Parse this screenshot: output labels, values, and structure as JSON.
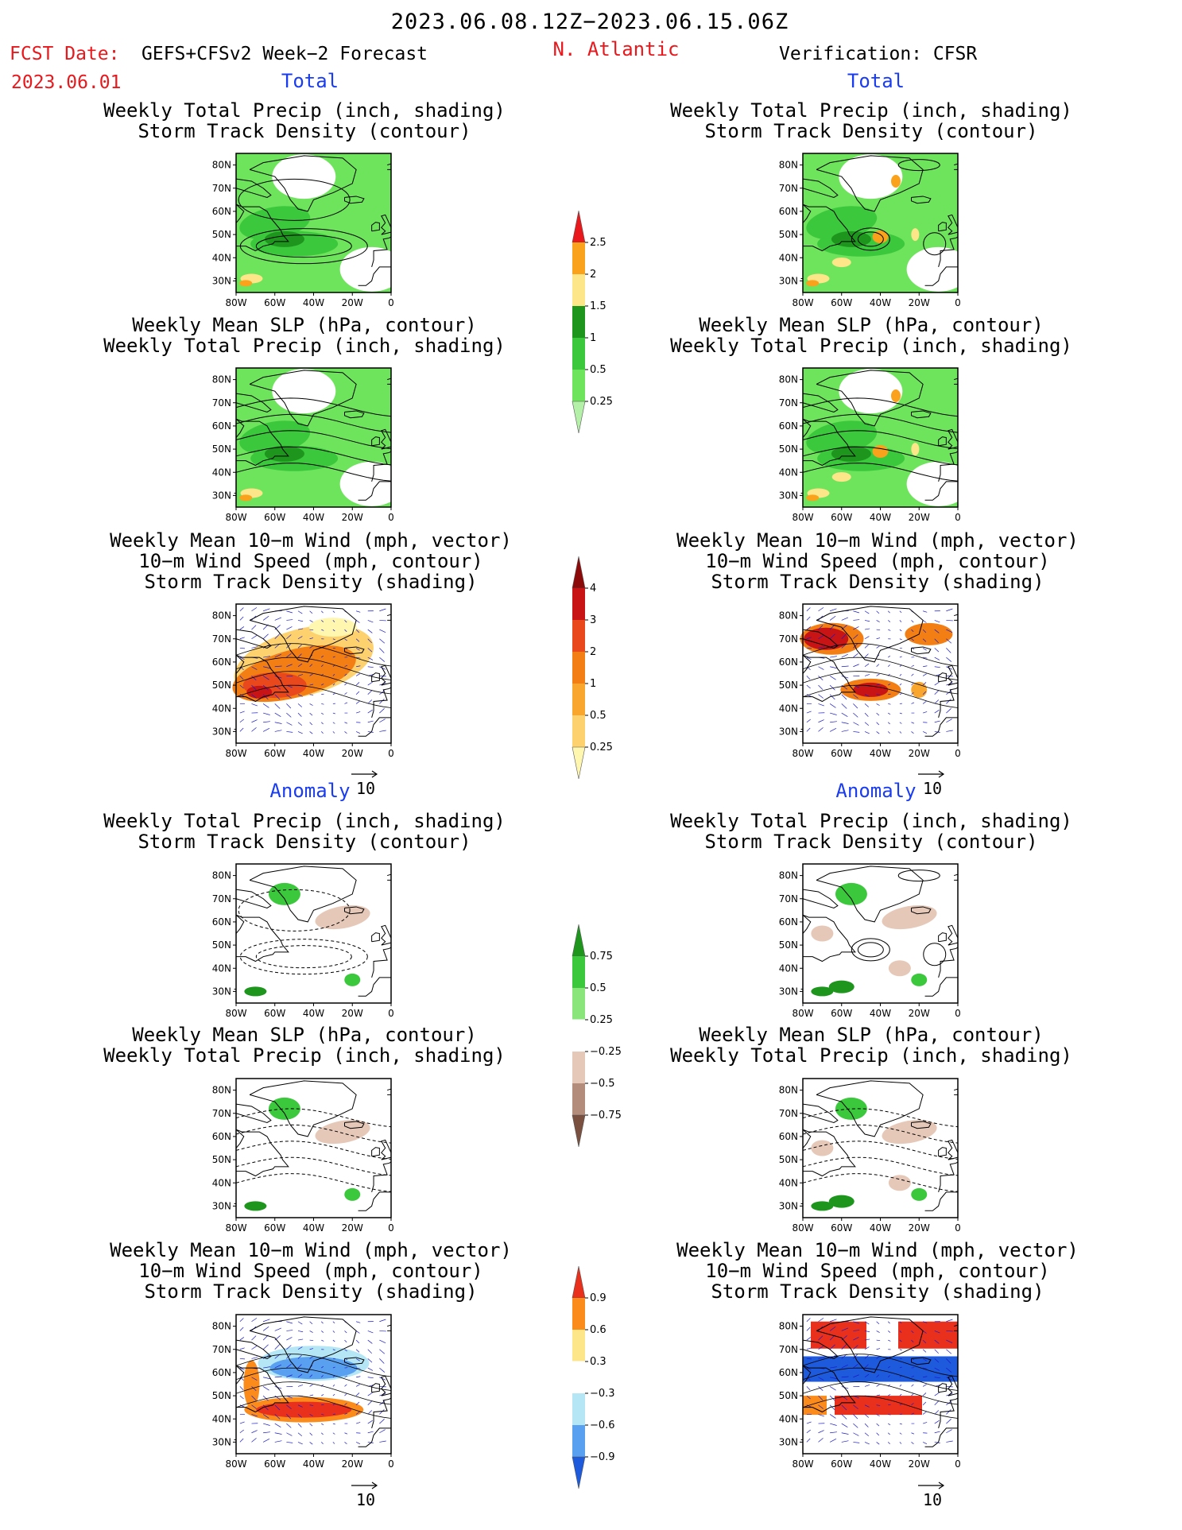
{
  "header": {
    "valid_period": "2023.06.08.12Z−2023.06.15.06Z",
    "fcst_label": "FCST Date:",
    "forecast_name": "GEFS+CFSv2 Week−2 Forecast",
    "fcst_date": "2023.06.01",
    "region": "N. Atlantic",
    "verification": "Verification: CFSR"
  },
  "sections": {
    "total": "Total",
    "anomaly": "Anomaly"
  },
  "panel_titles": {
    "precip_storm": [
      "Weekly Total Precip (inch, shading)",
      "Storm Track Density (contour)"
    ],
    "slp_precip": [
      "Weekly Mean SLP (hPa, contour)",
      "Weekly Total Precip (inch, shading)"
    ],
    "wind_storm": [
      "Weekly Mean 10−m Wind (mph, vector)",
      "10−m Wind Speed (mph, contour)",
      "Storm Track Density (shading)"
    ]
  },
  "axes": {
    "lat_labels": [
      "80N",
      "70N",
      "60N",
      "50N",
      "40N",
      "30N"
    ],
    "lon_labels": [
      "80W",
      "60W",
      "40W",
      "20W",
      "0"
    ]
  },
  "vector_reference": "10",
  "colorbars": {
    "precip_total": {
      "ticks": [
        "0.25",
        "0.5",
        "1",
        "1.5",
        "2",
        "2.5"
      ],
      "colors": [
        "#b4f0a8",
        "#6ee35c",
        "#3cc83c",
        "#1e961e",
        "#fde68a",
        "#fba21c",
        "#e8181c"
      ]
    },
    "storm_total": {
      "ticks": [
        "0.25",
        "0.5",
        "1",
        "2",
        "3",
        "4"
      ],
      "colors": [
        "#fff7b0",
        "#fdd26e",
        "#f9a62e",
        "#f27e14",
        "#e8481c",
        "#c81414",
        "#8c0a0a"
      ]
    },
    "precip_anom": {
      "ticks": [
        "0.75",
        "0.5",
        "0.25",
        "−0.25",
        "−0.5",
        "−0.75"
      ],
      "colors": [
        "#1e961e",
        "#3cc83c",
        "#8ae67a",
        "#ffffff",
        "#e6c8b8",
        "#b48c7c",
        "#7a5040"
      ]
    },
    "storm_anom": {
      "ticks": [
        "0.9",
        "0.6",
        "0.3",
        "−0.3",
        "−0.6",
        "−0.9"
      ],
      "colors": [
        "#e8301c",
        "#fb8c1c",
        "#fde68a",
        "#ffffff",
        "#b4e6f5",
        "#5aa0f0",
        "#1e5adc"
      ]
    }
  },
  "map_colors": {
    "land_outline": "#000000",
    "wind_vector": "#1a1ac8",
    "contour": "#000000"
  }
}
